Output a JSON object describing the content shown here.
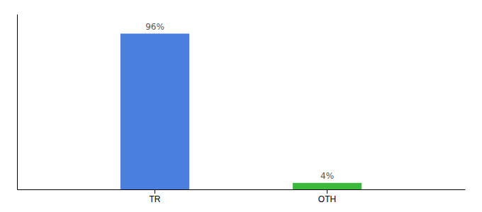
{
  "chart_data": {
    "type": "bar",
    "categories": [
      "TR",
      "OTH"
    ],
    "values": [
      96,
      4
    ],
    "colors": [
      "#4a7fe0",
      "#3cb83c"
    ],
    "value_labels": [
      "96%",
      "4%"
    ],
    "data_labels": true,
    "ylim": [
      0,
      108
    ],
    "tick_labels": "x",
    "grid": false
  }
}
